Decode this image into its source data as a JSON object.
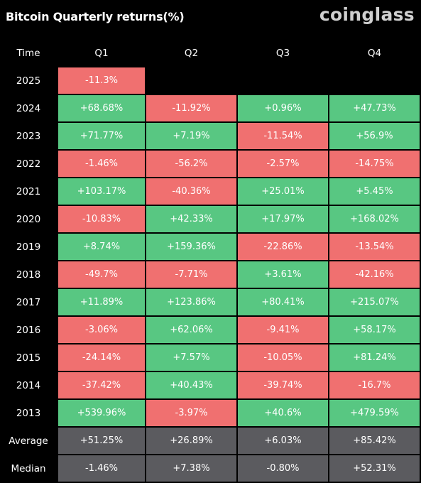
{
  "header": {
    "title": "Bitcoin Quarterly returns(%)",
    "brand": "coinglass"
  },
  "colors": {
    "positive": "#58c782",
    "negative": "#f07070",
    "summary": "#5b5b5f",
    "background": "#000000"
  },
  "chart_data": {
    "type": "table",
    "title": "Bitcoin Quarterly returns(%)",
    "columns": [
      "Time",
      "Q1",
      "Q2",
      "Q3",
      "Q4"
    ],
    "rows": [
      {
        "label": "2025",
        "kind": "year",
        "cells": [
          {
            "text": "-11.3%",
            "value": -11.3
          },
          null,
          null,
          null
        ]
      },
      {
        "label": "2024",
        "kind": "year",
        "cells": [
          {
            "text": "+68.68%",
            "value": 68.68
          },
          {
            "text": "-11.92%",
            "value": -11.92
          },
          {
            "text": "+0.96%",
            "value": 0.96
          },
          {
            "text": "+47.73%",
            "value": 47.73
          }
        ]
      },
      {
        "label": "2023",
        "kind": "year",
        "cells": [
          {
            "text": "+71.77%",
            "value": 71.77
          },
          {
            "text": "+7.19%",
            "value": 7.19
          },
          {
            "text": "-11.54%",
            "value": -11.54
          },
          {
            "text": "+56.9%",
            "value": 56.9
          }
        ]
      },
      {
        "label": "2022",
        "kind": "year",
        "cells": [
          {
            "text": "-1.46%",
            "value": -1.46
          },
          {
            "text": "-56.2%",
            "value": -56.2
          },
          {
            "text": "-2.57%",
            "value": -2.57
          },
          {
            "text": "-14.75%",
            "value": -14.75
          }
        ]
      },
      {
        "label": "2021",
        "kind": "year",
        "cells": [
          {
            "text": "+103.17%",
            "value": 103.17
          },
          {
            "text": "-40.36%",
            "value": -40.36
          },
          {
            "text": "+25.01%",
            "value": 25.01
          },
          {
            "text": "+5.45%",
            "value": 5.45
          }
        ]
      },
      {
        "label": "2020",
        "kind": "year",
        "cells": [
          {
            "text": "-10.83%",
            "value": -10.83
          },
          {
            "text": "+42.33%",
            "value": 42.33
          },
          {
            "text": "+17.97%",
            "value": 17.97
          },
          {
            "text": "+168.02%",
            "value": 168.02
          }
        ]
      },
      {
        "label": "2019",
        "kind": "year",
        "cells": [
          {
            "text": "+8.74%",
            "value": 8.74
          },
          {
            "text": "+159.36%",
            "value": 159.36
          },
          {
            "text": "-22.86%",
            "value": -22.86
          },
          {
            "text": "-13.54%",
            "value": -13.54
          }
        ]
      },
      {
        "label": "2018",
        "kind": "year",
        "cells": [
          {
            "text": "-49.7%",
            "value": -49.7
          },
          {
            "text": "-7.71%",
            "value": -7.71
          },
          {
            "text": "+3.61%",
            "value": 3.61
          },
          {
            "text": "-42.16%",
            "value": -42.16
          }
        ]
      },
      {
        "label": "2017",
        "kind": "year",
        "cells": [
          {
            "text": "+11.89%",
            "value": 11.89
          },
          {
            "text": "+123.86%",
            "value": 123.86
          },
          {
            "text": "+80.41%",
            "value": 80.41
          },
          {
            "text": "+215.07%",
            "value": 215.07
          }
        ]
      },
      {
        "label": "2016",
        "kind": "year",
        "cells": [
          {
            "text": "-3.06%",
            "value": -3.06
          },
          {
            "text": "+62.06%",
            "value": 62.06
          },
          {
            "text": "-9.41%",
            "value": -9.41
          },
          {
            "text": "+58.17%",
            "value": 58.17
          }
        ]
      },
      {
        "label": "2015",
        "kind": "year",
        "cells": [
          {
            "text": "-24.14%",
            "value": -24.14
          },
          {
            "text": "+7.57%",
            "value": 7.57
          },
          {
            "text": "-10.05%",
            "value": -10.05
          },
          {
            "text": "+81.24%",
            "value": 81.24
          }
        ]
      },
      {
        "label": "2014",
        "kind": "year",
        "cells": [
          {
            "text": "-37.42%",
            "value": -37.42
          },
          {
            "text": "+40.43%",
            "value": 40.43
          },
          {
            "text": "-39.74%",
            "value": -39.74
          },
          {
            "text": "-16.7%",
            "value": -16.7
          }
        ]
      },
      {
        "label": "2013",
        "kind": "year",
        "cells": [
          {
            "text": "+539.96%",
            "value": 539.96
          },
          {
            "text": "-3.97%",
            "value": -3.97
          },
          {
            "text": "+40.6%",
            "value": 40.6
          },
          {
            "text": "+479.59%",
            "value": 479.59
          }
        ]
      },
      {
        "label": "Average",
        "kind": "summary",
        "cells": [
          {
            "text": "+51.25%",
            "value": 51.25
          },
          {
            "text": "+26.89%",
            "value": 26.89
          },
          {
            "text": "+6.03%",
            "value": 6.03
          },
          {
            "text": "+85.42%",
            "value": 85.42
          }
        ]
      },
      {
        "label": "Median",
        "kind": "summary",
        "cells": [
          {
            "text": "-1.46%",
            "value": -1.46
          },
          {
            "text": "+7.38%",
            "value": 7.38
          },
          {
            "text": "-0.80%",
            "value": -0.8
          },
          {
            "text": "+52.31%",
            "value": 52.31
          }
        ]
      }
    ]
  }
}
